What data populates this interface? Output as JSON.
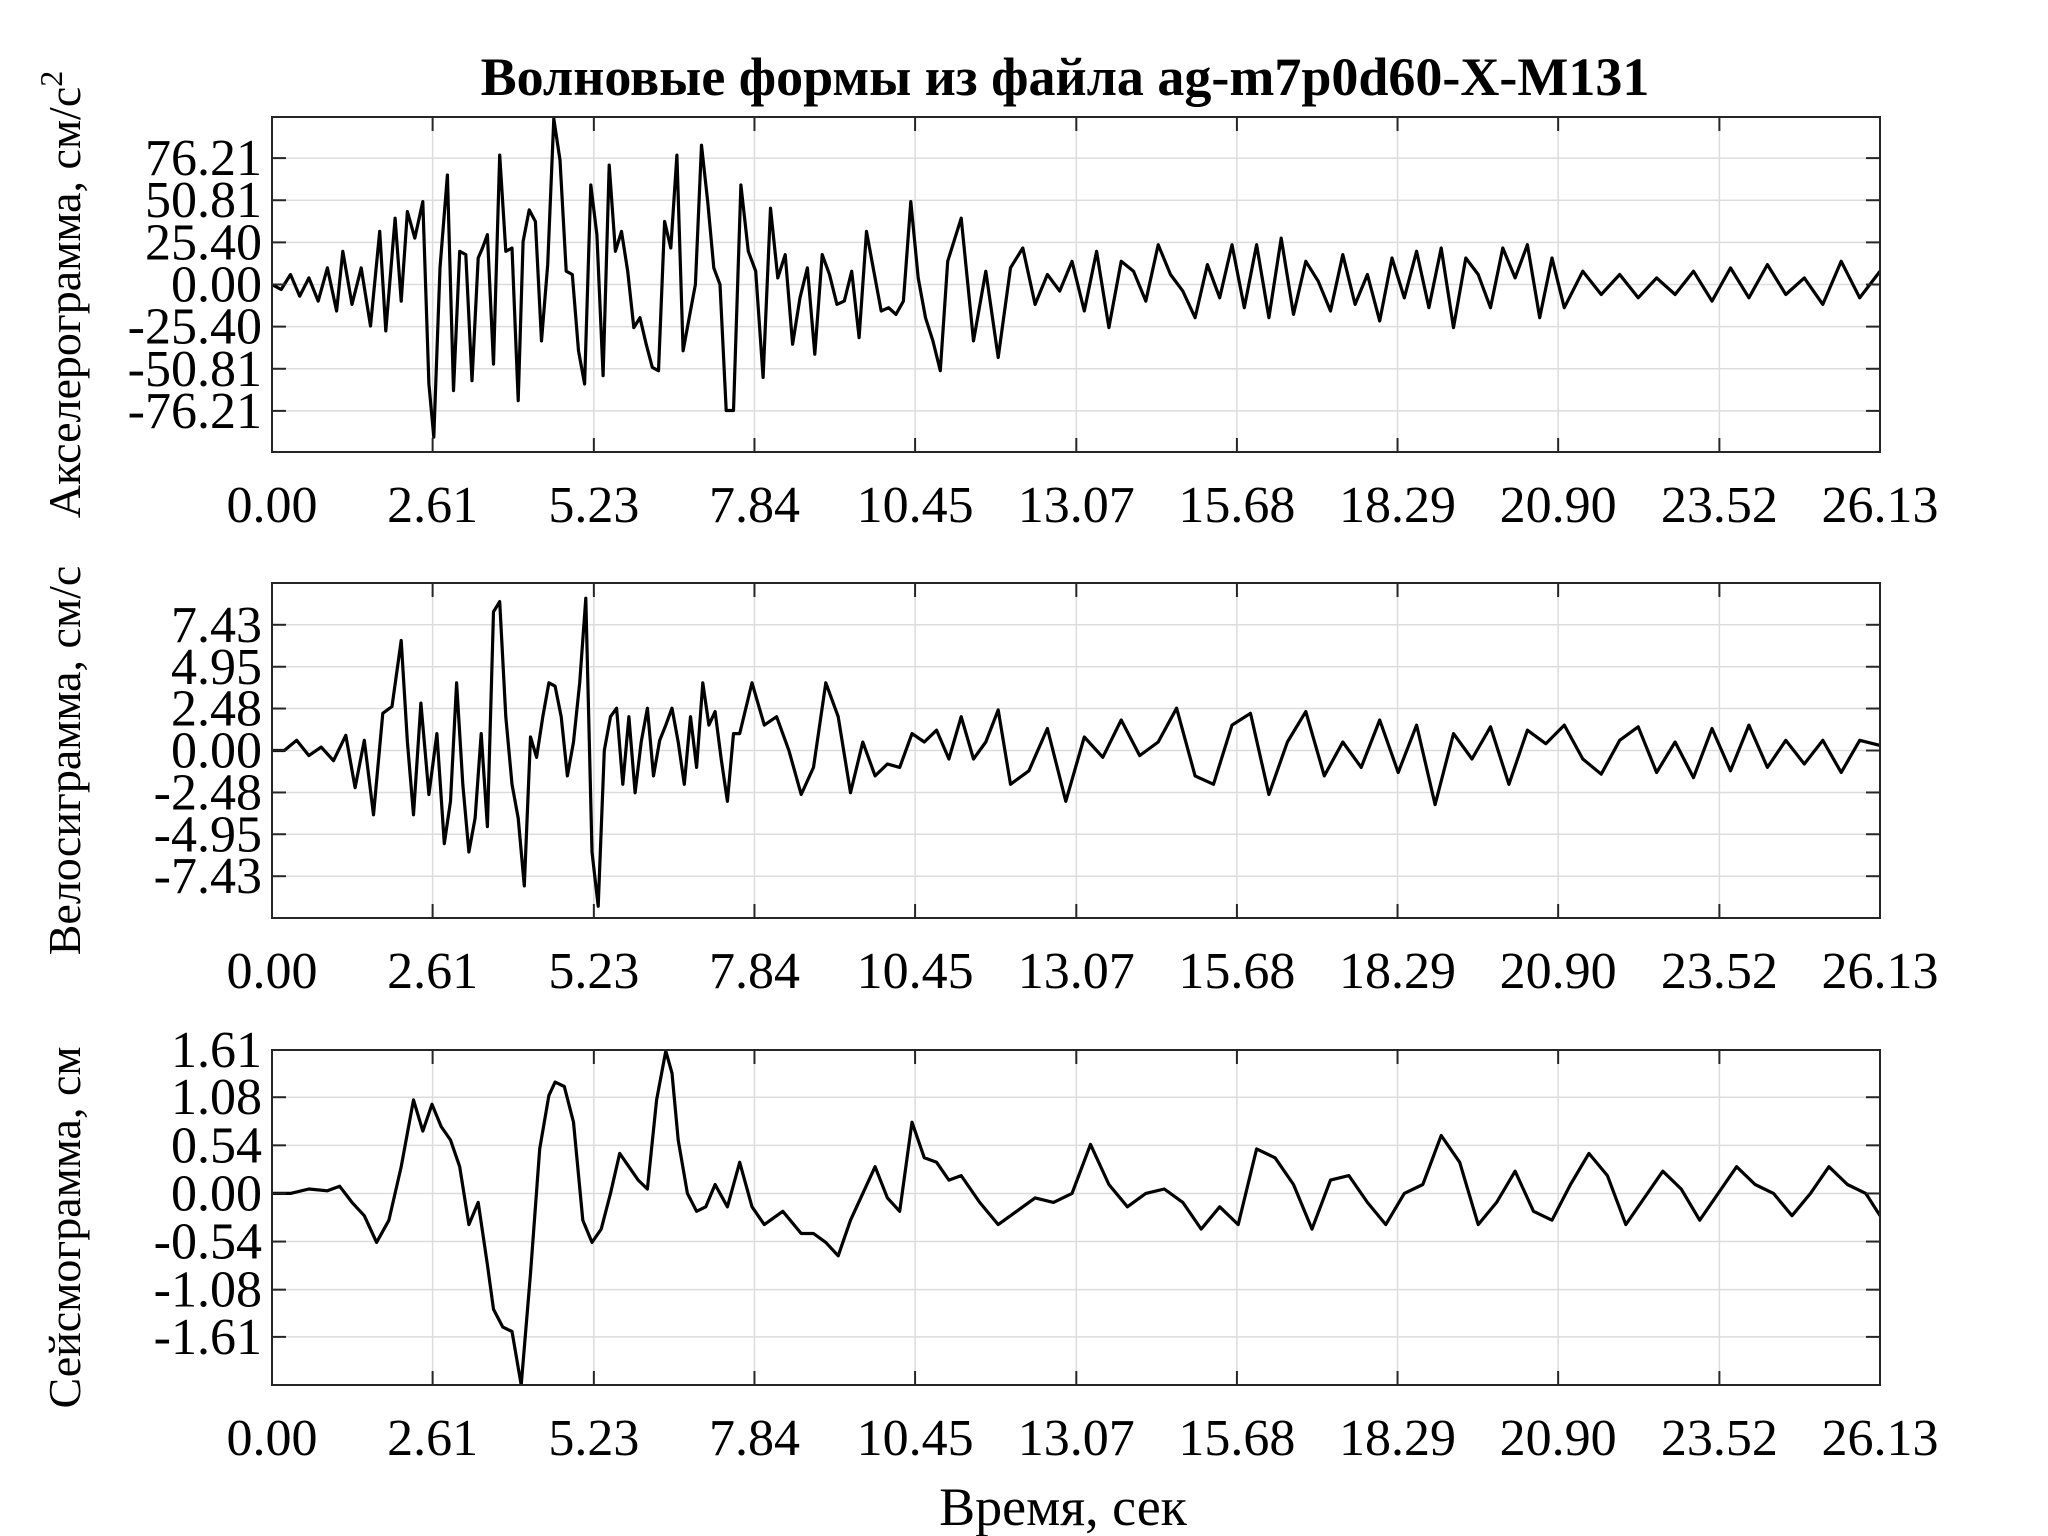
{
  "title": "Волновые формы из файла ag-m7p0d60-X-M131",
  "xlabel": "Время, сек",
  "chart_data": [
    {
      "type": "line",
      "ylabel": "Акселерограмма, см/с",
      "ylabel_sup": "2",
      "xlim": [
        0,
        26.13
      ],
      "ylim": [
        -101,
        101
      ],
      "xticks": [
        "0.00",
        "2.61",
        "5.23",
        "7.84",
        "10.45",
        "13.07",
        "15.68",
        "18.29",
        "20.90",
        "23.52",
        "26.13"
      ],
      "xtick_values": [
        0,
        2.61,
        5.23,
        7.84,
        10.45,
        13.07,
        15.68,
        18.29,
        20.9,
        23.52,
        26.13
      ],
      "yticks": [
        "76.21",
        "50.81",
        "25.40",
        "0.00",
        "-25.40",
        "-50.81",
        "-76.21"
      ],
      "ytick_values": [
        76.21,
        50.81,
        25.4,
        0,
        -25.4,
        -50.81,
        -76.21
      ],
      "grid": true,
      "series": [
        {
          "x": [
            0,
            0.15,
            0.3,
            0.45,
            0.6,
            0.75,
            0.9,
            1.05,
            1.15,
            1.3,
            1.45,
            1.6,
            1.75,
            1.85,
            2.0,
            2.1,
            2.2,
            2.32,
            2.45,
            2.55,
            2.63,
            2.73,
            2.85,
            2.95,
            3.05,
            3.15,
            3.25,
            3.35,
            3.42,
            3.5,
            3.6,
            3.7,
            3.8,
            3.9,
            4.0,
            4.08,
            4.18,
            4.28,
            4.38,
            4.48,
            4.58,
            4.68,
            4.78,
            4.88,
            4.98,
            5.08,
            5.18,
            5.28,
            5.38,
            5.48,
            5.58,
            5.68,
            5.78,
            5.88,
            5.98,
            6.08,
            6.18,
            6.28,
            6.38,
            6.48,
            6.58,
            6.68,
            6.78,
            6.88,
            6.98,
            7.08,
            7.18,
            7.28,
            7.38,
            7.5,
            7.62,
            7.74,
            7.86,
            7.98,
            8.1,
            8.22,
            8.34,
            8.46,
            8.58,
            8.7,
            8.82,
            8.94,
            9.06,
            9.18,
            9.3,
            9.42,
            9.54,
            9.66,
            9.78,
            9.9,
            10.02,
            10.14,
            10.26,
            10.38,
            10.5,
            10.62,
            10.74,
            10.86,
            10.98,
            11.2,
            11.4,
            11.6,
            11.8,
            12.0,
            12.2,
            12.4,
            12.6,
            12.8,
            13.0,
            13.2,
            13.4,
            13.6,
            13.8,
            14.0,
            14.2,
            14.4,
            14.6,
            14.8,
            15.0,
            15.2,
            15.4,
            15.6,
            15.8,
            16.0,
            16.2,
            16.4,
            16.6,
            16.8,
            17.0,
            17.2,
            17.4,
            17.6,
            17.8,
            18.0,
            18.2,
            18.4,
            18.6,
            18.8,
            19.0,
            19.2,
            19.4,
            19.6,
            19.8,
            20.0,
            20.2,
            20.4,
            20.6,
            20.8,
            21.0,
            21.3,
            21.6,
            21.9,
            22.2,
            22.5,
            22.8,
            23.1,
            23.4,
            23.7,
            24.0,
            24.3,
            24.6,
            24.9,
            25.2,
            25.5,
            25.8,
            26.13
          ],
          "y": [
            0,
            -3,
            6,
            -7,
            4,
            -10,
            10,
            -16,
            20,
            -12,
            10,
            -25,
            32,
            -28,
            40,
            -10,
            44,
            28,
            50,
            -60,
            -92,
            10,
            66,
            -64,
            20,
            18,
            -58,
            16,
            22,
            30,
            -48,
            78,
            20,
            22,
            -70,
            26,
            45,
            38,
            -34,
            12,
            100,
            75,
            8,
            6,
            -40,
            -60,
            60,
            30,
            -55,
            72,
            20,
            32,
            8,
            -26,
            -20,
            -36,
            -50,
            -52,
            38,
            22,
            78,
            -40,
            -20,
            0,
            84,
            50,
            10,
            0,
            -76,
            -76,
            60,
            20,
            8,
            -56,
            46,
            4,
            18,
            -36,
            -8,
            10,
            -42,
            18,
            6,
            -12,
            -10,
            8,
            -32,
            32,
            8,
            -16,
            -14,
            -18,
            -10,
            50,
            4,
            -20,
            -34,
            -52,
            14,
            40,
            -34,
            8,
            -44,
            10,
            22,
            -12,
            6,
            -4,
            14,
            -16,
            20,
            -26,
            14,
            8,
            -10,
            24,
            6,
            -4,
            -20,
            12,
            -8,
            24,
            -14,
            24,
            -20,
            28,
            -18,
            14,
            2,
            -16,
            18,
            -12,
            6,
            -22,
            16,
            -8,
            20,
            -14,
            22,
            -26,
            16,
            6,
            -14,
            22,
            4,
            24,
            -20,
            16,
            -14,
            8,
            -6,
            6,
            -8,
            4,
            -6,
            8,
            -10,
            10,
            -8,
            12,
            -6,
            4,
            -12,
            14,
            -8,
            8
          ],
          "name": ""
        }
      ]
    },
    {
      "type": "line",
      "ylabel": "Велосиграмма, см/с",
      "xlim": [
        0,
        26.13
      ],
      "ylim": [
        -9.9,
        9.9
      ],
      "xticks": [
        "0.00",
        "2.61",
        "5.23",
        "7.84",
        "10.45",
        "13.07",
        "15.68",
        "18.29",
        "20.90",
        "23.52",
        "26.13"
      ],
      "xtick_values": [
        0,
        2.61,
        5.23,
        7.84,
        10.45,
        13.07,
        15.68,
        18.29,
        20.9,
        23.52,
        26.13
      ],
      "yticks": [
        "7.43",
        "4.95",
        "2.48",
        "0.00",
        "-2.48",
        "-4.95",
        "-7.43"
      ],
      "ytick_values": [
        7.43,
        4.95,
        2.48,
        0,
        -2.48,
        -4.95,
        -7.43
      ],
      "grid": true,
      "series": [
        {
          "x": [
            0,
            0.2,
            0.4,
            0.6,
            0.8,
            1.0,
            1.2,
            1.35,
            1.5,
            1.65,
            1.8,
            1.95,
            2.1,
            2.2,
            2.3,
            2.42,
            2.55,
            2.68,
            2.8,
            2.9,
            3.0,
            3.1,
            3.2,
            3.3,
            3.4,
            3.5,
            3.6,
            3.7,
            3.8,
            3.9,
            4.0,
            4.1,
            4.2,
            4.3,
            4.4,
            4.5,
            4.6,
            4.7,
            4.8,
            4.9,
            5.0,
            5.1,
            5.2,
            5.3,
            5.4,
            5.5,
            5.6,
            5.7,
            5.8,
            5.9,
            6.0,
            6.1,
            6.2,
            6.3,
            6.4,
            6.5,
            6.6,
            6.7,
            6.8,
            6.9,
            7.0,
            7.1,
            7.2,
            7.3,
            7.4,
            7.5,
            7.6,
            7.8,
            8.0,
            8.2,
            8.4,
            8.6,
            8.8,
            9.0,
            9.2,
            9.4,
            9.6,
            9.8,
            10.0,
            10.2,
            10.4,
            10.6,
            10.8,
            11.0,
            11.2,
            11.4,
            11.6,
            11.8,
            12.0,
            12.3,
            12.6,
            12.9,
            13.2,
            13.5,
            13.8,
            14.1,
            14.4,
            14.7,
            15.0,
            15.3,
            15.6,
            15.9,
            16.2,
            16.5,
            16.8,
            17.1,
            17.4,
            17.7,
            18.0,
            18.3,
            18.6,
            18.9,
            19.2,
            19.5,
            19.8,
            20.1,
            20.4,
            20.7,
            21.0,
            21.3,
            21.6,
            21.9,
            22.2,
            22.5,
            22.8,
            23.1,
            23.4,
            23.7,
            24.0,
            24.3,
            24.6,
            24.9,
            25.2,
            25.5,
            25.8,
            26.13
          ],
          "y": [
            0,
            0,
            0.6,
            -0.3,
            0.2,
            -0.6,
            0.9,
            -2.2,
            0.6,
            -3.8,
            2.2,
            2.6,
            6.5,
            0.5,
            -3.8,
            2.8,
            -2.6,
            1,
            -5.5,
            -3,
            4,
            -2,
            -6,
            -4,
            1,
            -4.5,
            8.2,
            8.8,
            2,
            -2,
            -4,
            -8,
            0.8,
            -0.4,
            2,
            4,
            3.8,
            2,
            -1.5,
            0.5,
            4,
            9,
            -6,
            -9.2,
            0,
            2,
            2.5,
            -2,
            2,
            -2.5,
            0.5,
            2.5,
            -1.5,
            0.6,
            1.5,
            2.5,
            0.5,
            -2,
            2,
            -1,
            4,
            1.5,
            2.3,
            -0.5,
            -3,
            1,
            1,
            4,
            1.5,
            2,
            0,
            -2.6,
            -1,
            4,
            2,
            -2.5,
            0.5,
            -1.5,
            -0.8,
            -1,
            1,
            0.5,
            1.2,
            -0.5,
            2,
            -0.5,
            0.5,
            2.4,
            -2,
            -1.2,
            1.3,
            -3,
            0.8,
            -0.4,
            1.8,
            -0.3,
            0.5,
            2.5,
            -1.5,
            -2,
            1.5,
            2.2,
            -2.6,
            0.5,
            2.3,
            -1.5,
            0.5,
            -1,
            1.8,
            -1.3,
            1.5,
            -3.2,
            1,
            -0.5,
            1.4,
            -2,
            1.2,
            0.4,
            1.5,
            -0.5,
            -1.4,
            0.6,
            1.4,
            -1.3,
            0.5,
            -1.6,
            1.3,
            -1.2,
            1.5,
            -1,
            0.6,
            -0.8,
            0.6,
            -1.3,
            0.6,
            0.3
          ],
          "name": ""
        }
      ]
    },
    {
      "type": "line",
      "ylabel": "Сейсмограмма, см",
      "xlim": [
        0,
        26.13
      ],
      "ylim": [
        -2.15,
        1.61
      ],
      "xticks": [
        "0.00",
        "2.61",
        "5.23",
        "7.84",
        "10.45",
        "13.07",
        "15.68",
        "18.29",
        "20.90",
        "23.52",
        "26.13"
      ],
      "xtick_values": [
        0,
        2.61,
        5.23,
        7.84,
        10.45,
        13.07,
        15.68,
        18.29,
        20.9,
        23.52,
        26.13
      ],
      "yticks": [
        "1.61",
        "1.08",
        "0.54",
        "0.00",
        "-0.54",
        "-1.08",
        "-1.61"
      ],
      "ytick_values": [
        1.61,
        1.08,
        0.54,
        0,
        -0.54,
        -1.08,
        -1.61
      ],
      "grid": true,
      "series": [
        {
          "x": [
            0,
            0.3,
            0.6,
            0.9,
            1.1,
            1.3,
            1.5,
            1.7,
            1.9,
            2.1,
            2.3,
            2.45,
            2.6,
            2.75,
            2.9,
            3.05,
            3.2,
            3.35,
            3.5,
            3.6,
            3.75,
            3.9,
            4.05,
            4.2,
            4.35,
            4.5,
            4.6,
            4.75,
            4.9,
            5.05,
            5.2,
            5.35,
            5.5,
            5.65,
            5.8,
            5.95,
            6.1,
            6.25,
            6.4,
            6.5,
            6.6,
            6.75,
            6.9,
            7.05,
            7.2,
            7.4,
            7.6,
            7.8,
            8.0,
            8.3,
            8.6,
            8.8,
            9.0,
            9.2,
            9.4,
            9.6,
            9.8,
            10.0,
            10.2,
            10.4,
            10.6,
            10.8,
            11.0,
            11.2,
            11.5,
            11.8,
            12.1,
            12.4,
            12.7,
            13.0,
            13.3,
            13.6,
            13.9,
            14.2,
            14.5,
            14.8,
            15.1,
            15.4,
            15.7,
            16.0,
            16.3,
            16.6,
            16.9,
            17.2,
            17.5,
            17.8,
            18.1,
            18.4,
            18.7,
            19.0,
            19.3,
            19.6,
            19.9,
            20.2,
            20.5,
            20.8,
            21.1,
            21.4,
            21.7,
            22.0,
            22.3,
            22.6,
            22.9,
            23.2,
            23.5,
            23.8,
            24.1,
            24.4,
            24.7,
            25.0,
            25.3,
            25.6,
            25.9,
            26.13
          ],
          "y": [
            0,
            0,
            0.05,
            0.03,
            0.08,
            -0.1,
            -0.25,
            -0.55,
            -0.3,
            0.3,
            1.05,
            0.7,
            1.0,
            0.75,
            0.6,
            0.3,
            -0.35,
            -0.1,
            -0.8,
            -1.3,
            -1.5,
            -1.55,
            -2.15,
            -0.9,
            0.5,
            1.1,
            1.25,
            1.2,
            0.8,
            -0.3,
            -0.55,
            -0.4,
            0.0,
            0.45,
            0.3,
            0.15,
            0.05,
            1.05,
            1.6,
            1.35,
            0.6,
            0.0,
            -0.2,
            -0.15,
            0.1,
            -0.15,
            0.35,
            -0.15,
            -0.35,
            -0.2,
            -0.45,
            -0.45,
            -0.55,
            -0.7,
            -0.3,
            0.0,
            0.3,
            -0.05,
            -0.2,
            0.8,
            0.4,
            0.35,
            0.15,
            0.2,
            -0.1,
            -0.35,
            -0.2,
            -0.05,
            -0.1,
            0.0,
            0.55,
            0.1,
            -0.15,
            0.0,
            0.05,
            -0.1,
            -0.4,
            -0.15,
            -0.35,
            0.5,
            0.4,
            0.1,
            -0.4,
            0.15,
            0.2,
            -0.1,
            -0.35,
            0.0,
            0.1,
            0.65,
            0.35,
            -0.35,
            -0.1,
            0.25,
            -0.2,
            -0.3,
            0.1,
            0.45,
            0.2,
            -0.35,
            -0.05,
            0.25,
            0.05,
            -0.3,
            0.0,
            0.3,
            0.1,
            0.0,
            -0.25,
            0.0,
            0.3,
            0.1,
            0.0,
            -0.25
          ],
          "name": ""
        }
      ]
    }
  ]
}
